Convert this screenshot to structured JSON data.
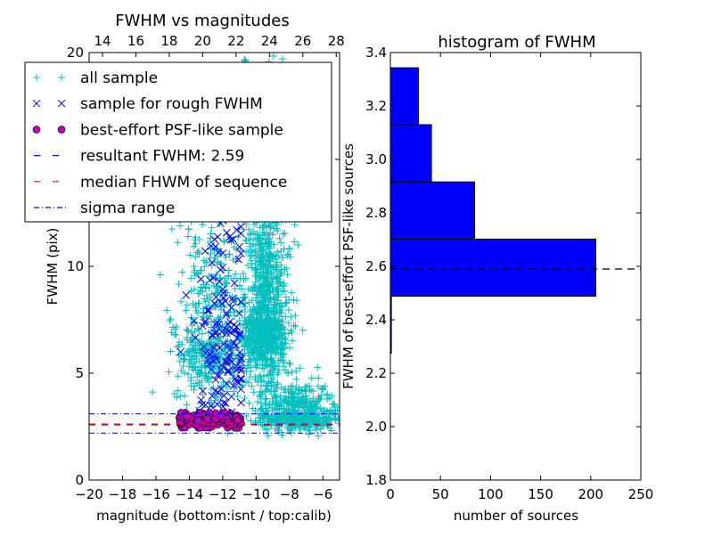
{
  "chart_data": [
    {
      "type": "scatter",
      "title": "FWHM vs magnitudes",
      "xlabel": "magnitude (bottom:isnt / top:calib)",
      "ylabel": "FWHM (pix)",
      "xlim": [
        -20,
        -5
      ],
      "ylim": [
        0,
        20
      ],
      "xticks": [
        "−20",
        "−18",
        "−16",
        "−14",
        "−12",
        "−10",
        "−8",
        "−6"
      ],
      "xtick_values": [
        -20,
        -18,
        -16,
        -14,
        -12,
        -10,
        -8,
        -6
      ],
      "yticks": [
        "0",
        "5",
        "10"
      ],
      "ytick_values": [
        0,
        5,
        10
      ],
      "top_xticks": [
        "14",
        "16",
        "18",
        "20",
        "22",
        "24",
        "26",
        "28"
      ],
      "top_xtick_values": [
        14,
        16,
        18,
        20,
        22,
        24,
        26,
        28
      ],
      "top_offset": 33.2,
      "legend_position": "upper-left",
      "legend": [
        {
          "label": "all sample",
          "marker": "+",
          "color": "#00bfbf"
        },
        {
          "label": "sample for rough FWHM",
          "marker": "x",
          "color": "#0000ff"
        },
        {
          "label": "best-effort PSF-like sample",
          "marker": "o",
          "color": "#bf00bf"
        },
        {
          "label": "resultant FWHM: 2.59",
          "style": "dashed",
          "color": "#0000ff"
        },
        {
          "label": "median FHWM of sequence",
          "style": "dashed",
          "color": "#ff0000"
        },
        {
          "label": "sigma range",
          "style": "dashdot",
          "color": "#0000ff"
        }
      ],
      "resultant_fwhm": 2.59,
      "median_fwhm": 2.62,
      "sigma_range": [
        2.2,
        3.1
      ],
      "clusters": {
        "all_sample": [
          {
            "x": [
              -9.5,
              0.7
            ],
            "y": [
              7.5,
              3.2
            ],
            "n": 1100
          },
          {
            "x": [
              -7.5,
              1.2
            ],
            "y": [
              3.0,
              0.8
            ],
            "n": 600
          },
          {
            "x": [
              -12.8,
              1.0
            ],
            "y": [
              6.5,
              3.5
            ],
            "n": 500
          },
          {
            "x": [
              -9.5,
              0.8
            ],
            "y": [
              15,
              4
            ],
            "n": 200
          }
        ],
        "rough_sample": [
          {
            "x": [
              -12.0,
              0.9
            ],
            "y": [
              6.5,
              3.0
            ],
            "n": 180
          }
        ],
        "psf_sample": [
          {
            "x": [
              -12.7,
              1.05
            ],
            "y": [
              2.8,
              0.18
            ],
            "n": 160
          }
        ]
      }
    },
    {
      "type": "bar",
      "orientation": "horizontal",
      "title": "histogram of FWHM",
      "xlabel": "number of sources",
      "ylabel": "FWHM of best-effort PSF-like sources",
      "xlim": [
        0,
        250
      ],
      "ylim": [
        1.8,
        3.4
      ],
      "xticks": [
        "0",
        "50",
        "100",
        "150",
        "200",
        "250"
      ],
      "xtick_values": [
        0,
        50,
        100,
        150,
        200,
        250
      ],
      "yticks": [
        "1.8",
        "2.0",
        "2.2",
        "2.4",
        "2.6",
        "2.8",
        "3.0",
        "3.2",
        "3.4"
      ],
      "ytick_values": [
        1.8,
        2.0,
        2.2,
        2.4,
        2.6,
        2.8,
        3.0,
        3.2,
        3.4
      ],
      "bin_edges": [
        2.275,
        2.488,
        2.702,
        2.916,
        3.13,
        3.343
      ],
      "values": [
        1,
        205,
        84,
        41,
        28
      ],
      "bar_color": "#0000ff",
      "reference_line": 2.59
    }
  ]
}
